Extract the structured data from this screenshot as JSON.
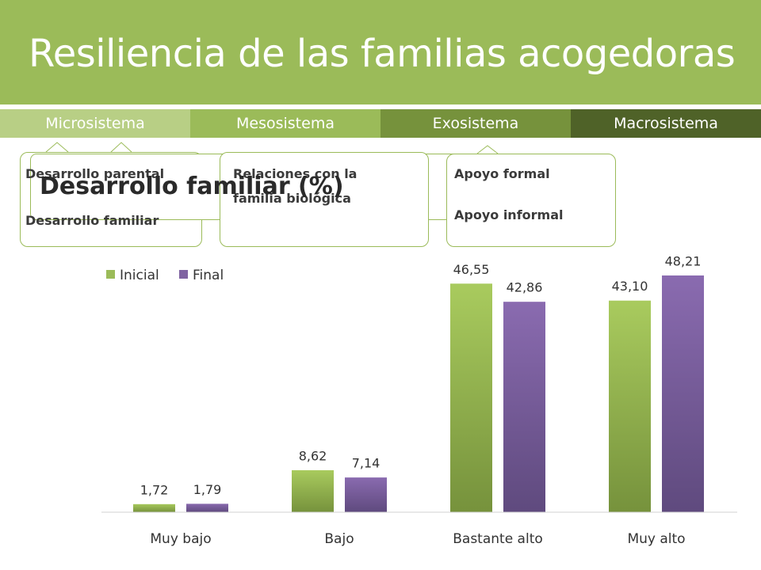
{
  "slide": {
    "title": "Resiliencia de las familias acogedoras",
    "tabs": [
      {
        "label": "Microsistema",
        "color": "#b8cf85"
      },
      {
        "label": "Mesosistema",
        "color": "#9bbb59"
      },
      {
        "label": "Exosistema",
        "color": "#76923c"
      },
      {
        "label": "Macrosistema",
        "color": "#4f6228"
      }
    ],
    "boxes": [
      {
        "lines": [
          "Desarrollo parental",
          "Desarrollo familiar"
        ]
      },
      {
        "lines": [
          "Relaciones con la",
          "familia biológica"
        ]
      },
      {
        "lines": [
          "Apoyo formal",
          "Apoyo informal"
        ]
      }
    ]
  },
  "chart_data": {
    "type": "bar",
    "title": "Desarrollo familiar (%)",
    "categories": [
      "Muy bajo",
      "Bajo",
      "Bastante alto",
      "Muy alto"
    ],
    "series": [
      {
        "name": "Inicial",
        "values": [
          1.72,
          8.62,
          46.55,
          43.1
        ],
        "labels": [
          "1,72",
          "8,62",
          "46,55",
          "43,10"
        ],
        "color": "#9bbb59"
      },
      {
        "name": "Final",
        "values": [
          1.79,
          7.14,
          42.86,
          48.21
        ],
        "labels": [
          "1,79",
          "7,14",
          "42,86",
          "48,21"
        ],
        "color": "#8064a2"
      }
    ],
    "legend": "top-left",
    "grid": false
  }
}
